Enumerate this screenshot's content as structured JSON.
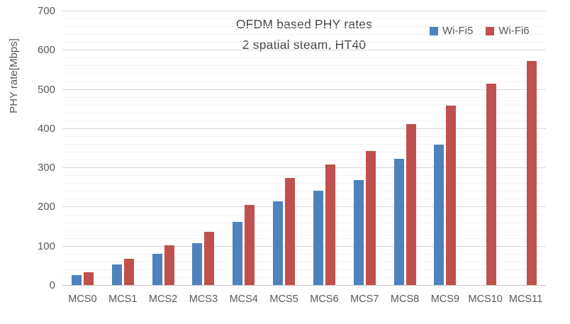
{
  "chart_data": {
    "type": "bar",
    "title": "OFDM based PHY rates",
    "subtitle": "2 spatial steam, HT40",
    "ylabel": "PHY rate[Mbps]",
    "categories": [
      "MCS0",
      "MCS1",
      "MCS2",
      "MCS3",
      "MCS4",
      "MCS5",
      "MCS6",
      "MCS7",
      "MCS8",
      "MCS9",
      "MCS10",
      "MCS11"
    ],
    "series": [
      {
        "name": "Wi-Fi5",
        "color": "#4F81BD",
        "values": [
          27,
          54,
          81,
          108,
          162,
          216,
          243,
          270,
          324,
          360,
          null,
          null
        ]
      },
      {
        "name": "Wi-Fi6",
        "color": "#C0504D",
        "values": [
          34.4,
          68.8,
          103.2,
          137.6,
          206.5,
          275.3,
          309.7,
          344.1,
          412.9,
          458.8,
          516.2,
          573.5
        ]
      }
    ],
    "ylim": [
      0,
      700
    ],
    "y_ticks": [
      0,
      100,
      200,
      300,
      400,
      500,
      600,
      700
    ],
    "y_minor_step": 20,
    "grid": true,
    "legend_position": "top-right"
  }
}
